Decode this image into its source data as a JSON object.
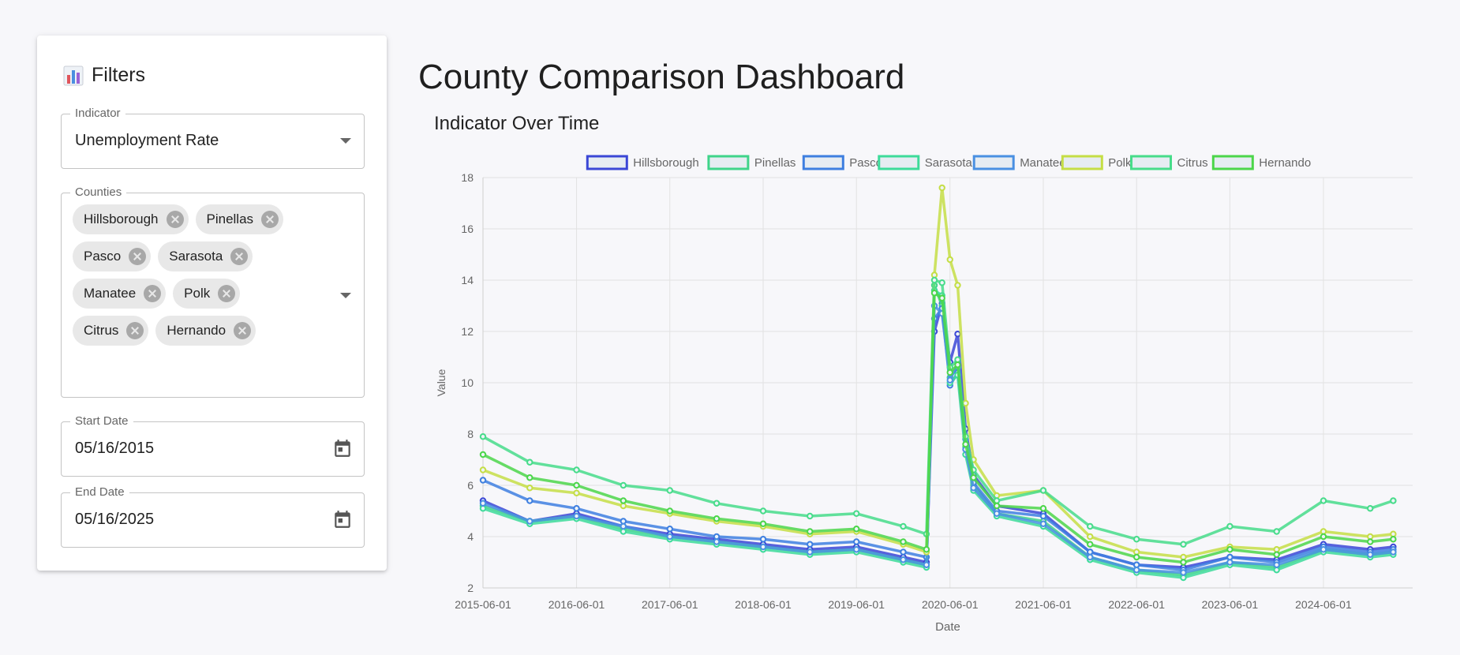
{
  "page": {
    "title": "County Comparison Dashboard"
  },
  "filters": {
    "title": "Filters",
    "title_icon": "bar-chart-icon",
    "indicator": {
      "label": "Indicator",
      "value": "Unemployment Rate"
    },
    "counties": {
      "label": "Counties",
      "selected": [
        "Hillsborough",
        "Pinellas",
        "Pasco",
        "Sarasota",
        "Manatee",
        "Polk",
        "Citrus",
        "Hernando"
      ]
    },
    "start_date": {
      "label": "Start Date",
      "value": "05/16/2015"
    },
    "end_date": {
      "label": "End Date",
      "value": "05/16/2025"
    }
  },
  "chart_data": {
    "type": "line",
    "title": "Indicator Over Time",
    "xlabel": "Date",
    "ylabel": "Value",
    "ylim": [
      2,
      18
    ],
    "yticks": [
      2,
      4,
      6,
      8,
      10,
      12,
      14,
      16,
      18
    ],
    "x": [
      "2015-06-01",
      "2015-12-01",
      "2016-06-01",
      "2016-12-01",
      "2017-06-01",
      "2017-12-01",
      "2018-06-01",
      "2018-12-01",
      "2019-06-01",
      "2019-12-01",
      "2020-03-01",
      "2020-04-01",
      "2020-05-01",
      "2020-06-01",
      "2020-07-01",
      "2020-08-01",
      "2020-09-01",
      "2020-12-01",
      "2021-06-01",
      "2021-12-01",
      "2022-06-01",
      "2022-12-01",
      "2023-06-01",
      "2023-12-01",
      "2024-06-01",
      "2024-12-01",
      "2025-03-01"
    ],
    "xticks": [
      "2015-06-01",
      "2016-06-01",
      "2017-06-01",
      "2018-06-01",
      "2019-06-01",
      "2020-06-01",
      "2021-06-01",
      "2022-06-01",
      "2023-06-01",
      "2024-06-01"
    ],
    "legend_position": "top",
    "grid": true,
    "series": [
      {
        "name": "Hillsborough",
        "color": "#3b47d6",
        "values": [
          5.4,
          4.6,
          4.9,
          4.4,
          4.1,
          3.9,
          3.7,
          3.5,
          3.6,
          3.2,
          3.0,
          12.0,
          13.1,
          10.8,
          11.9,
          8.2,
          6.4,
          5.2,
          4.9,
          3.4,
          2.9,
          2.8,
          3.2,
          3.1,
          3.7,
          3.5,
          3.6
        ]
      },
      {
        "name": "Pinellas",
        "color": "#3fd48a",
        "values": [
          5.2,
          4.6,
          4.8,
          4.3,
          4.0,
          3.8,
          3.6,
          3.4,
          3.5,
          3.1,
          2.9,
          13.8,
          13.0,
          10.2,
          10.6,
          7.5,
          6.0,
          4.9,
          4.6,
          3.2,
          2.7,
          2.5,
          3.0,
          2.8,
          3.5,
          3.3,
          3.4
        ]
      },
      {
        "name": "Pasco",
        "color": "#3e7fe0",
        "values": [
          6.2,
          5.4,
          5.1,
          4.6,
          4.3,
          4.0,
          3.9,
          3.7,
          3.8,
          3.4,
          3.2,
          12.5,
          12.9,
          9.9,
          10.4,
          7.8,
          6.1,
          5.0,
          4.8,
          3.4,
          2.9,
          2.7,
          3.2,
          3.0,
          3.6,
          3.4,
          3.5
        ]
      },
      {
        "name": "Sarasota",
        "color": "#3ddb9a",
        "values": [
          5.1,
          4.5,
          4.7,
          4.2,
          3.9,
          3.7,
          3.5,
          3.3,
          3.4,
          3.0,
          2.8,
          13.6,
          13.4,
          10.0,
          10.3,
          7.2,
          5.8,
          4.8,
          4.4,
          3.1,
          2.6,
          2.4,
          2.9,
          2.7,
          3.4,
          3.2,
          3.3
        ]
      },
      {
        "name": "Manatee",
        "color": "#4a90e2",
        "values": [
          5.3,
          4.6,
          4.8,
          4.4,
          4.0,
          3.8,
          3.6,
          3.4,
          3.5,
          3.1,
          2.9,
          13.0,
          12.7,
          10.1,
          10.8,
          7.4,
          5.9,
          4.9,
          4.5,
          3.2,
          2.7,
          2.6,
          3.0,
          2.9,
          3.5,
          3.3,
          3.4
        ]
      },
      {
        "name": "Polk",
        "color": "#c5de45",
        "values": [
          6.6,
          5.9,
          5.7,
          5.2,
          4.9,
          4.6,
          4.4,
          4.1,
          4.2,
          3.7,
          3.4,
          14.2,
          17.6,
          14.8,
          13.8,
          9.2,
          7.0,
          5.6,
          5.8,
          4.0,
          3.4,
          3.2,
          3.6,
          3.5,
          4.2,
          4.0,
          4.1
        ]
      },
      {
        "name": "Citrus",
        "color": "#47dc8a",
        "values": [
          7.9,
          6.9,
          6.6,
          6.0,
          5.8,
          5.3,
          5.0,
          4.8,
          4.9,
          4.4,
          4.1,
          14.0,
          13.9,
          10.6,
          10.9,
          7.9,
          6.6,
          5.4,
          5.8,
          4.4,
          3.9,
          3.7,
          4.4,
          4.2,
          5.4,
          5.1,
          5.4
        ]
      },
      {
        "name": "Hernando",
        "color": "#4cd64a",
        "values": [
          7.2,
          6.3,
          6.0,
          5.4,
          5.0,
          4.7,
          4.5,
          4.2,
          4.3,
          3.8,
          3.5,
          13.5,
          13.3,
          10.4,
          10.7,
          7.6,
          6.3,
          5.2,
          5.1,
          3.7,
          3.2,
          3.0,
          3.5,
          3.3,
          4.0,
          3.8,
          3.9
        ]
      }
    ]
  }
}
